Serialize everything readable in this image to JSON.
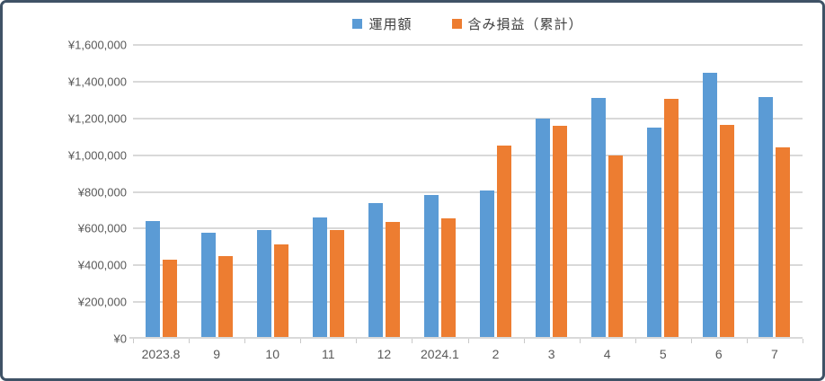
{
  "legend": [
    {
      "label": "運用額",
      "color": "#5B9BD5"
    },
    {
      "label": "含み損益（累計）",
      "color": "#ED7D31"
    }
  ],
  "chart_data": {
    "type": "bar",
    "title": "",
    "categories": [
      "2023.8",
      "9",
      "10",
      "11",
      "12",
      "2024.1",
      "2",
      "3",
      "4",
      "5",
      "6",
      "7"
    ],
    "series": [
      {
        "name": "運用額",
        "color": "#5B9BD5",
        "values": [
          640000,
          575000,
          590000,
          660000,
          740000,
          785000,
          805000,
          1200000,
          1310000,
          1150000,
          1450000,
          1315000
        ]
      },
      {
        "name": "含み損益（累計）",
        "color": "#ED7D31",
        "values": [
          430000,
          450000,
          515000,
          590000,
          635000,
          655000,
          1050000,
          1160000,
          1000000,
          1305000,
          1165000,
          1040000
        ]
      }
    ],
    "ylim": [
      0,
      1600000
    ],
    "ytick_step": 200000,
    "ytick_labels": [
      "¥0",
      "¥200,000",
      "¥400,000",
      "¥600,000",
      "¥800,000",
      "¥1,000,000",
      "¥1,200,000",
      "¥1,400,000",
      "¥1,600,000"
    ],
    "grid": true,
    "legend_position": "top-center"
  },
  "colors": {
    "frame_border": "#3F5266",
    "gridline": "#D9D9D9",
    "axis_tick": "#C9C9C9",
    "axis_text": "#595959",
    "legend_text": "#404040"
  }
}
